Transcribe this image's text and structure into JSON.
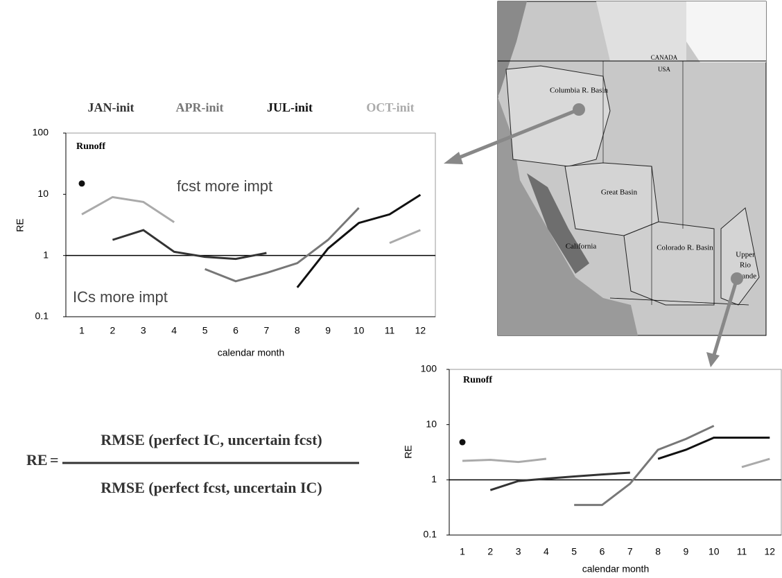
{
  "chart_data": [
    {
      "type": "line",
      "log_y": true,
      "annotations": [
        "Runoff",
        "fcst more impt",
        "ICs more impt"
      ],
      "ylabel": "RE",
      "xlabel": "calendar month",
      "categories": [
        "1",
        "2",
        "3",
        "4",
        "5",
        "6",
        "7",
        "8",
        "9",
        "10",
        "11",
        "12"
      ],
      "ylim": [
        0.1,
        100
      ],
      "yticks": [
        0.1,
        1,
        10,
        100
      ],
      "hline": 1,
      "series": [
        {
          "name": "JAN-init",
          "color": "#333333",
          "values": [
            null,
            1.8,
            2.6,
            1.15,
            0.95,
            0.88,
            1.1,
            null,
            null,
            null,
            null,
            null
          ]
        },
        {
          "name": "APR-init",
          "color": "#777777",
          "values": [
            null,
            null,
            null,
            null,
            0.6,
            0.38,
            0.52,
            0.75,
            1.8,
            6,
            null,
            null
          ]
        },
        {
          "name": "JUL-init",
          "color": "#111111",
          "values": [
            15,
            null,
            null,
            null,
            null,
            null,
            null,
            0.3,
            1.3,
            3.4,
            4.7,
            9.8
          ]
        },
        {
          "name": "OCT-init",
          "color": "#aaaaaa",
          "values": [
            4.7,
            9,
            7.5,
            3.5,
            null,
            null,
            null,
            null,
            null,
            null,
            1.6,
            2.6
          ]
        }
      ]
    },
    {
      "type": "line",
      "log_y": true,
      "annotations": [
        "Runoff"
      ],
      "ylabel": "RE",
      "xlabel": "calendar month",
      "categories": [
        "1",
        "2",
        "3",
        "4",
        "5",
        "6",
        "7",
        "8",
        "9",
        "10",
        "11",
        "12"
      ],
      "ylim": [
        0.1,
        100
      ],
      "yticks": [
        0.1,
        1,
        10,
        100
      ],
      "hline": 1,
      "series": [
        {
          "color": "#333333",
          "values": [
            null,
            0.65,
            0.95,
            1.05,
            1.15,
            1.25,
            1.35,
            null,
            null,
            null,
            null,
            null
          ]
        },
        {
          "color": "#777777",
          "values": [
            null,
            null,
            null,
            null,
            0.35,
            0.35,
            0.85,
            3.5,
            5.5,
            9.5,
            null,
            null
          ]
        },
        {
          "color": "#111111",
          "values": [
            4.8,
            null,
            null,
            null,
            null,
            null,
            null,
            2.4,
            3.5,
            5.8,
            5.8,
            5.8
          ]
        },
        {
          "color": "#aaaaaa",
          "values": [
            2.2,
            2.3,
            2.1,
            2.4,
            null,
            null,
            null,
            null,
            null,
            null,
            1.7,
            2.4
          ]
        }
      ]
    }
  ],
  "map": {
    "labels": [
      "CANADA",
      "USA",
      "Columbia R. Basin",
      "Great Basin",
      "California",
      "Colorado R. Basin",
      "Upper",
      "Rio",
      "Grande"
    ]
  },
  "formula": {
    "lhs": "RE",
    "equals": "=",
    "numerator": "RMSE (perfect IC, uncertain fcst)",
    "denominator": "RMSE (perfect fcst, uncertain IC)"
  }
}
